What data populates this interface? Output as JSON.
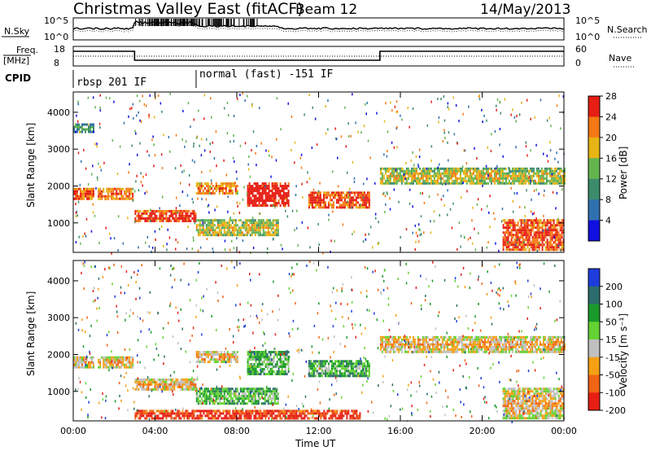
{
  "header": {
    "title": "Christmas Valley East (fitACF)",
    "beam": "Beam 12",
    "date": "14/May/2013"
  },
  "ancillary": {
    "nsky_label": "N.Sky",
    "nsearch_label": "N.Search",
    "nsky_ticks": [
      "10^5",
      "10^0"
    ],
    "nsky_ticks_right": [
      "10^5",
      "10^0"
    ],
    "freq_label": "Freq.",
    "freq_unit": "[MHz]",
    "freq_ticks": [
      "18",
      "8"
    ],
    "nave_label": "Nave",
    "nave_ticks": [
      "60",
      "0"
    ],
    "cpid_label": "CPID",
    "cpid_modes": [
      "rbsp 201 IF",
      "normal (fast) -151 IF"
    ]
  },
  "chart_data": [
    {
      "type": "heatmap",
      "panel": "power",
      "ylabel": "Slant Range [km]",
      "y_ticks": [
        "1000",
        "2000",
        "3000",
        "4000"
      ],
      "ylim": [
        200,
        4550
      ],
      "x_ticks": [
        "00:00",
        "04:00",
        "08:00",
        "12:00",
        "16:00",
        "20:00",
        "00:00"
      ],
      "xlim_hours": [
        0,
        24
      ],
      "colorbar": {
        "label": "Power [dB]",
        "ticks": [
          "4",
          "8",
          "12",
          "16",
          "20",
          "24",
          "28"
        ],
        "colors": [
          "#1010e0",
          "#3070b0",
          "#3c8c6c",
          "#64b450",
          "#e6b414",
          "#f57814",
          "#e61e14"
        ]
      },
      "bands": [
        {
          "x": [
            0.0,
            1.0
          ],
          "y": [
            1650,
            1950
          ],
          "level": 0.75
        },
        {
          "x": [
            1.2,
            2.9
          ],
          "y": [
            1650,
            1950
          ],
          "level": 0.7
        },
        {
          "x": [
            3.0,
            6.0
          ],
          "y": [
            1050,
            1350
          ],
          "level": 0.85
        },
        {
          "x": [
            6.0,
            8.0
          ],
          "y": [
            1800,
            2100
          ],
          "level": 0.7
        },
        {
          "x": [
            8.5,
            10.5
          ],
          "y": [
            1500,
            2100
          ],
          "level": 0.95
        },
        {
          "x": [
            11.5,
            14.5
          ],
          "y": [
            1450,
            1850
          ],
          "level": 0.8
        },
        {
          "x": [
            15.0,
            24.0
          ],
          "y": [
            2100,
            2500
          ],
          "level": 0.5
        },
        {
          "x": [
            21.0,
            24.0
          ],
          "y": [
            300,
            1100
          ],
          "level": 0.8
        },
        {
          "x": [
            0.0,
            1.0
          ],
          "y": [
            3500,
            3700
          ],
          "level": 0.3
        },
        {
          "x": [
            6.0,
            10.0
          ],
          "y": [
            650,
            1100
          ],
          "level": 0.5
        }
      ]
    },
    {
      "type": "heatmap",
      "panel": "velocity",
      "ylabel": "Slant Range [km]",
      "xlabel": "Time UT",
      "y_ticks": [
        "1000",
        "2000",
        "3000",
        "4000"
      ],
      "ylim": [
        200,
        4550
      ],
      "x_ticks": [
        "00:00",
        "04:00",
        "08:00",
        "12:00",
        "16:00",
        "20:00",
        "00:00"
      ],
      "xlim_hours": [
        0,
        24
      ],
      "colorbar": {
        "label": "Velocity [m s^-1]",
        "ticks": [
          "200",
          "100",
          "50",
          "15",
          "-15",
          "-50",
          "-100",
          "-200"
        ],
        "colors": [
          "#1e3cdc",
          "#2c6c6c",
          "#1a9a2a",
          "#64d232",
          "#c0c0c0",
          "#f5a014",
          "#f06414",
          "#e61e14"
        ]
      },
      "bands": [
        {
          "x": [
            0.0,
            1.0
          ],
          "y": [
            1650,
            1950
          ],
          "level": 0.55
        },
        {
          "x": [
            1.2,
            2.9
          ],
          "y": [
            1650,
            1950
          ],
          "level": 0.55
        },
        {
          "x": [
            3.0,
            6.0
          ],
          "y": [
            1050,
            1350
          ],
          "level": 0.55
        },
        {
          "x": [
            6.0,
            8.0
          ],
          "y": [
            1800,
            2100
          ],
          "level": 0.55
        },
        {
          "x": [
            8.5,
            10.5
          ],
          "y": [
            1500,
            2100
          ],
          "level": 0.3
        },
        {
          "x": [
            11.5,
            14.5
          ],
          "y": [
            1450,
            1850
          ],
          "level": 0.3
        },
        {
          "x": [
            15.0,
            24.0
          ],
          "y": [
            2100,
            2500
          ],
          "level": 0.55
        },
        {
          "x": [
            21.0,
            24.0
          ],
          "y": [
            300,
            1100
          ],
          "level": 0.55
        },
        {
          "x": [
            3.0,
            14.0
          ],
          "y": [
            250,
            500
          ],
          "level": 0.85
        },
        {
          "x": [
            6.0,
            10.0
          ],
          "y": [
            650,
            1100
          ],
          "level": 0.3
        }
      ]
    }
  ]
}
